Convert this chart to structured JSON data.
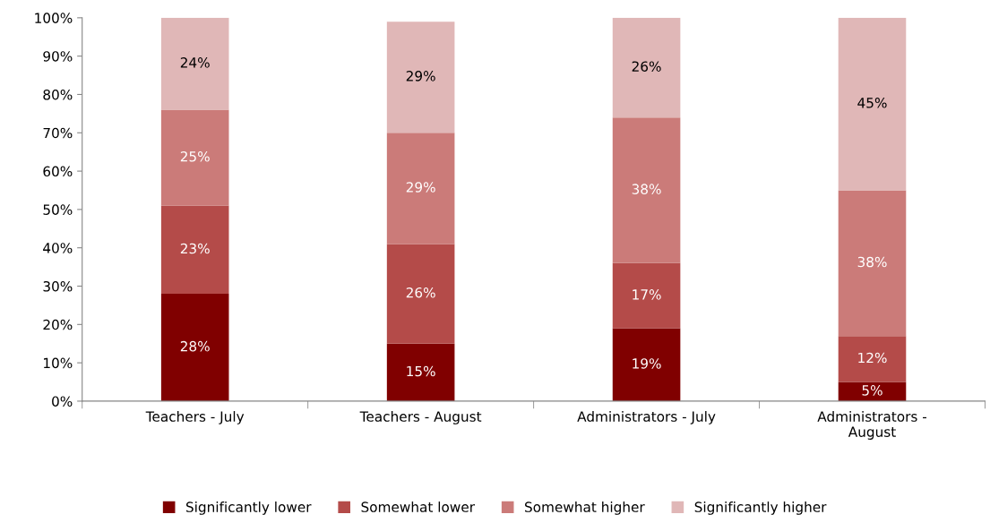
{
  "chart_data": {
    "type": "bar",
    "stacked": true,
    "legend": "bottom",
    "grid": false,
    "categories": [
      "Teachers - July",
      "Teachers - August",
      "Administrators - July",
      "Administrators - August"
    ],
    "ylim": [
      0,
      100
    ],
    "yticks": [
      {
        "value": 0,
        "label": "0%"
      },
      {
        "value": 10,
        "label": "10%"
      },
      {
        "value": 20,
        "label": "20%"
      },
      {
        "value": 30,
        "label": "30%"
      },
      {
        "value": 40,
        "label": "40%"
      },
      {
        "value": 50,
        "label": "50%"
      },
      {
        "value": 60,
        "label": "60%"
      },
      {
        "value": 70,
        "label": "70%"
      },
      {
        "value": 80,
        "label": "80%"
      },
      {
        "value": 90,
        "label": "90%"
      },
      {
        "value": 100,
        "label": "100%"
      }
    ],
    "series": [
      {
        "name": "Significantly lower",
        "color": "#800000",
        "values": [
          28,
          15,
          19,
          5
        ],
        "value_labels": [
          "28%",
          "15%",
          "19%",
          "5%"
        ]
      },
      {
        "name": "Somewhat lower",
        "color": "#b44b49",
        "values": [
          23,
          26,
          17,
          12
        ],
        "value_labels": [
          "23%",
          "26%",
          "17%",
          "12%"
        ]
      },
      {
        "name": "Somewhat higher",
        "color": "#cb7b79",
        "values": [
          25,
          29,
          38,
          38
        ],
        "value_labels": [
          "25%",
          "29%",
          "38%",
          "38%"
        ]
      },
      {
        "name": "Significantly higher",
        "color": "#e0b7b7",
        "values": [
          24,
          29,
          26,
          45
        ],
        "value_labels": [
          "24%",
          "29%",
          "26%",
          "45%"
        ]
      }
    ]
  }
}
